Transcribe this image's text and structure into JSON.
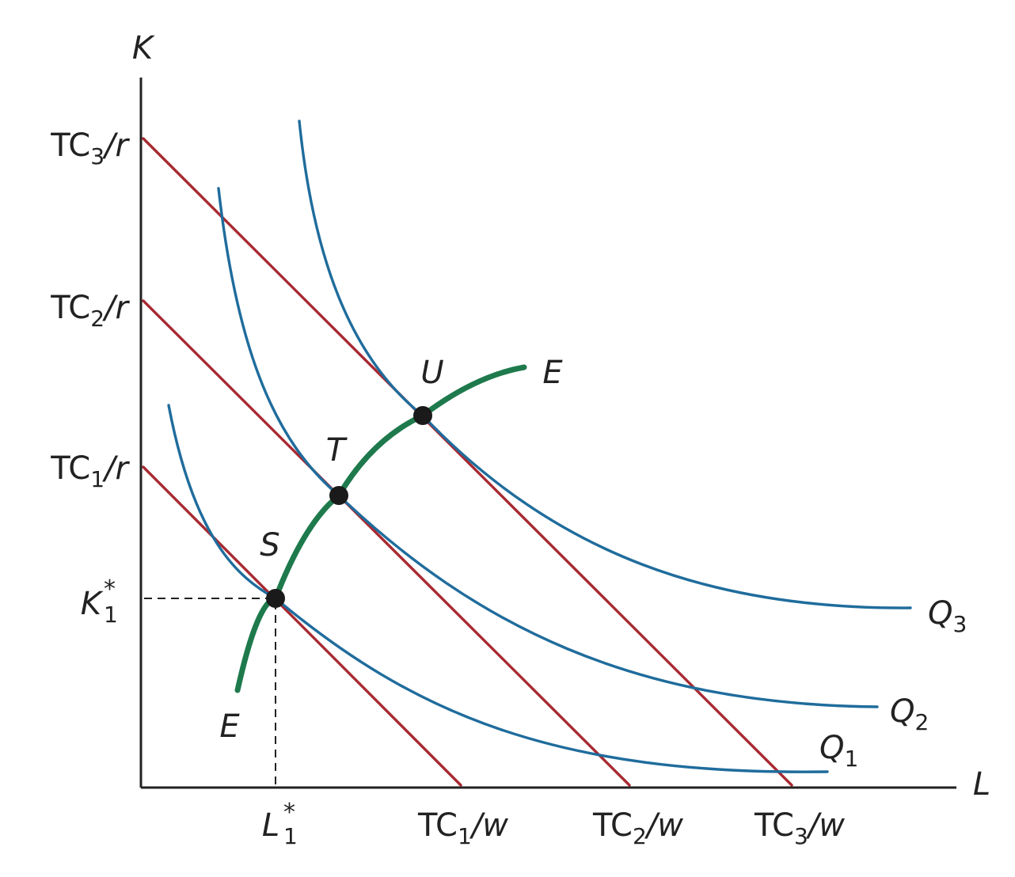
{
  "axes": {
    "y_label": "K",
    "x_label": "L"
  },
  "y_ticks": [
    {
      "main": "TC",
      "sub": "3",
      "tail": "/r"
    },
    {
      "main": "TC",
      "sub": "2",
      "tail": "/r"
    },
    {
      "main": "TC",
      "sub": "1",
      "tail": "/r"
    },
    {
      "main": "K",
      "sup": "*",
      "sub": "1"
    }
  ],
  "x_ticks": [
    {
      "main": "L",
      "sup": "*",
      "sub": "1"
    },
    {
      "main": "TC",
      "sub": "1",
      "tail": "/w"
    },
    {
      "main": "TC",
      "sub": "2",
      "tail": "/w"
    },
    {
      "main": "TC",
      "sub": "3",
      "tail": "/w"
    }
  ],
  "isoquants": [
    {
      "main": "Q",
      "sub": "1"
    },
    {
      "main": "Q",
      "sub": "2"
    },
    {
      "main": "Q",
      "sub": "3"
    }
  ],
  "points": [
    "S",
    "T",
    "U"
  ],
  "expansion_path": {
    "start_label": "E",
    "end_label": "E"
  },
  "colors": {
    "isocost": "#a82a32",
    "isoquant": "#1f6c9c",
    "expansion_path": "#1e7a4c",
    "point": "#1a1a1a",
    "axis": "#222222"
  }
}
